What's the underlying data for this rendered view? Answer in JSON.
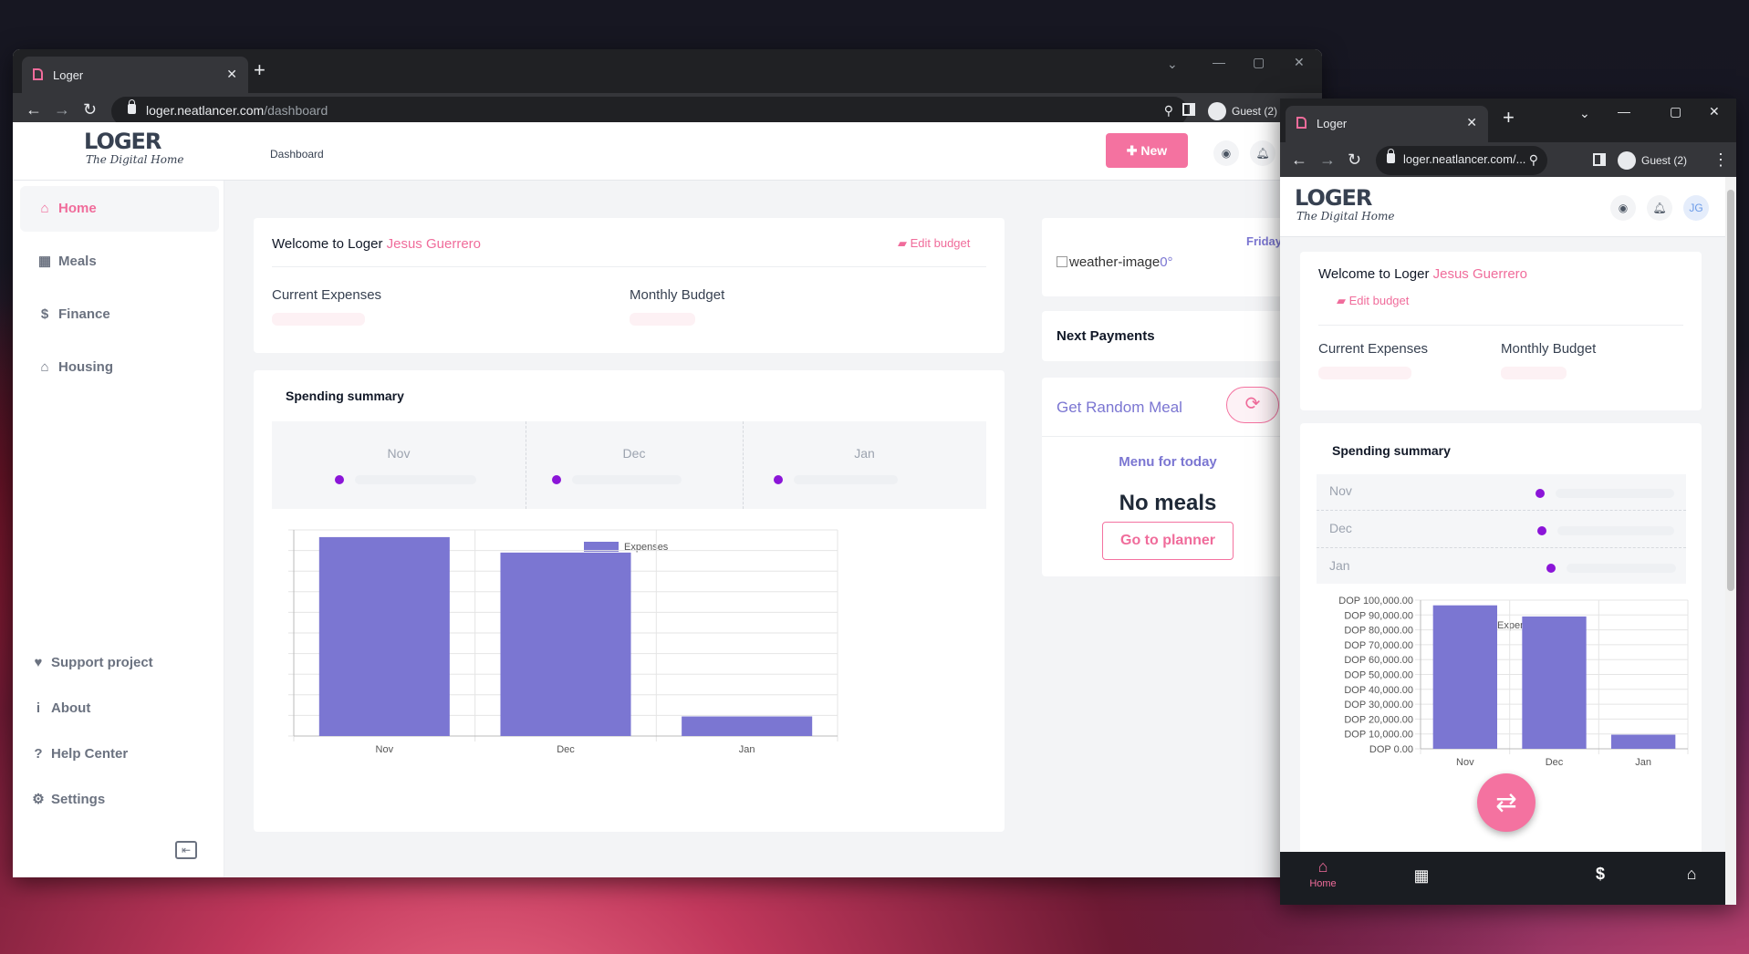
{
  "colors": {
    "accent": "#f06c9b",
    "primary": "#7b76d2",
    "bar": "#7b76d2",
    "dot": "#8b15d8"
  },
  "browser": {
    "tab_title": "Loger",
    "url_host": "loger.neatlancer.com",
    "url_path": "/dashboard",
    "url_short": "loger.neatlancer.com/...",
    "profile": "Guest (2)"
  },
  "app": {
    "logo_word": "LOGER",
    "logo_sub": "The Digital Home",
    "breadcrumb": "Dashboard",
    "new_button": "New",
    "avatar_initials": "JG",
    "sidebar": {
      "items": [
        {
          "label": "Home",
          "icon": "home-icon"
        },
        {
          "label": "Meals",
          "icon": "calendar-icon"
        },
        {
          "label": "Finance",
          "icon": "dollar-icon"
        },
        {
          "label": "Housing",
          "icon": "house-icon"
        }
      ],
      "footer": [
        {
          "label": "Support project",
          "icon": "heart-icon"
        },
        {
          "label": "About",
          "icon": "info-icon"
        },
        {
          "label": "Help Center",
          "icon": "question-icon"
        },
        {
          "label": "Settings",
          "icon": "gears-icon"
        }
      ]
    },
    "welcome": {
      "prefix": "Welcome to Loger",
      "name": "Jesus Guerrero",
      "edit_budget": "Edit budget",
      "current_expenses": "Current Expenses",
      "monthly_budget": "Monthly Budget"
    },
    "summary": {
      "title": "Spending summary",
      "months": [
        "Nov",
        "Dec",
        "Jan"
      ]
    },
    "right": {
      "weekday": "Friday",
      "weather_alt": "weather-image",
      "weather_deg": "0°",
      "next_payments": "Next Payments",
      "random_meal": "Get Random Meal",
      "menu_today": "Menu for today",
      "no_meals": "No meals",
      "go_planner": "Go to planner"
    },
    "bottom_nav": {
      "home_label": "Home"
    }
  },
  "chart_data": {
    "type": "bar",
    "categories": [
      "Nov",
      "Dec",
      "Jan"
    ],
    "series": [
      {
        "name": "Expenses",
        "values": [
          96500,
          89000,
          9500
        ]
      }
    ],
    "ylim": [
      0,
      100000
    ],
    "yticks": [
      "DOP 100,000.00",
      "DOP 90,000.00",
      "DOP 80,000.00",
      "DOP 70,000.00",
      "DOP 60,000.00",
      "DOP 50,000.00",
      "DOP 40,000.00",
      "DOP 30,000.00",
      "DOP 20,000.00",
      "DOP 10,000.00",
      "DOP 0.00"
    ],
    "legend": "top",
    "grid": true
  }
}
